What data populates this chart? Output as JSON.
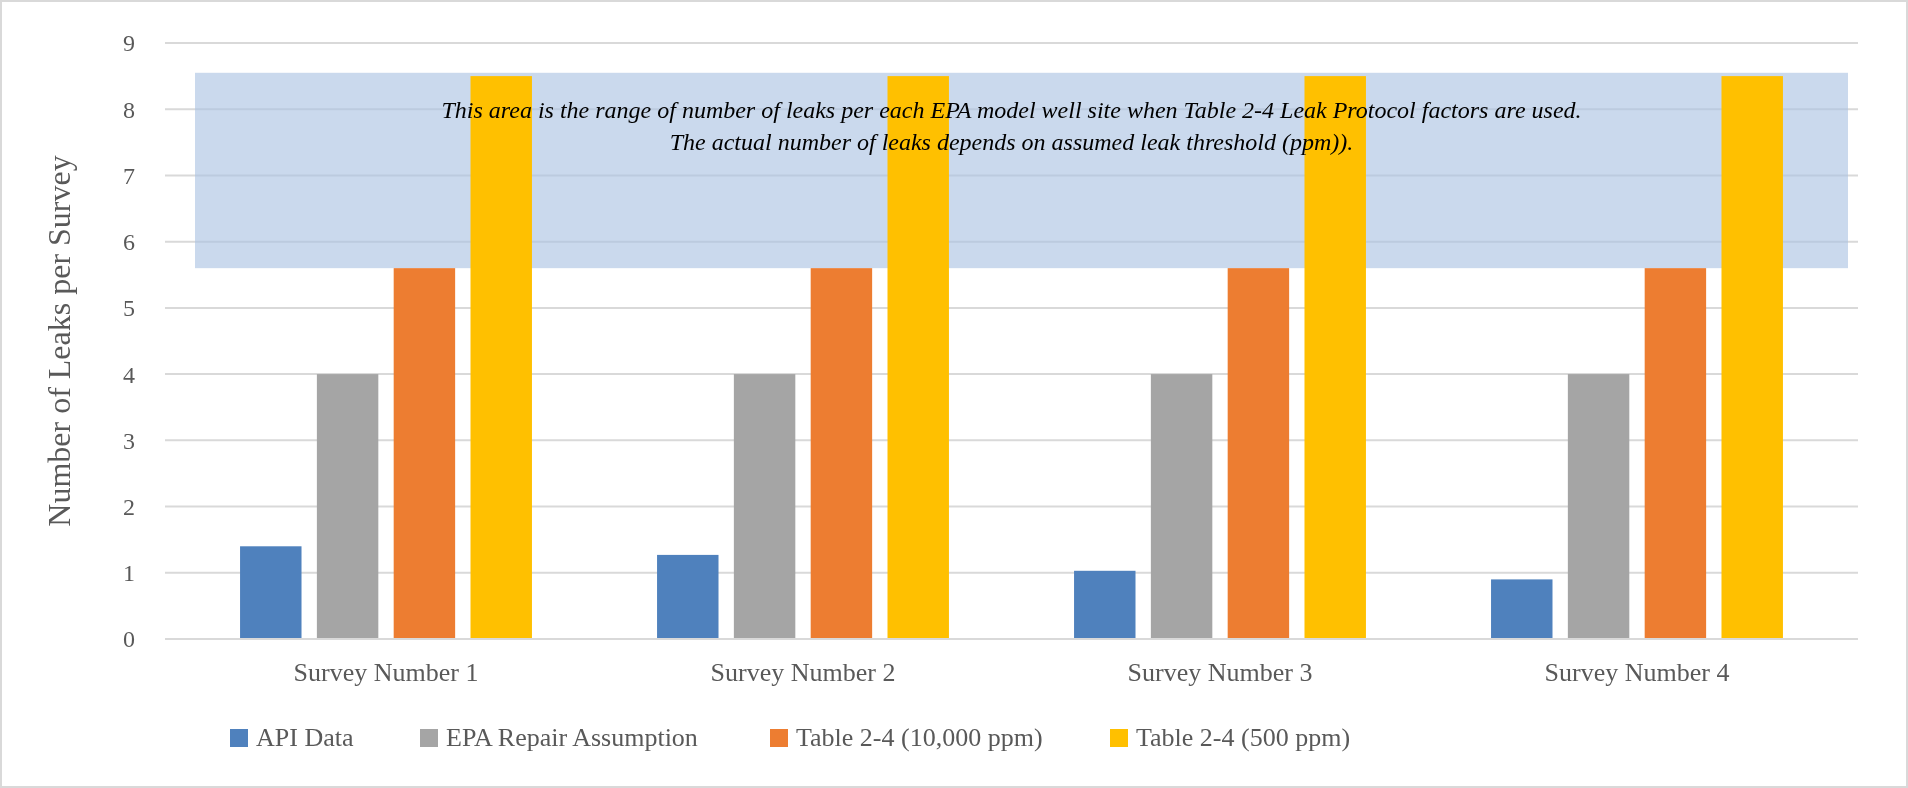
{
  "chart_data": {
    "type": "bar",
    "ylabel": "Number of Leaks per Survey",
    "categories": [
      "Survey Number 1",
      "Survey Number 2",
      "Survey Number 3",
      "Survey Number 4"
    ],
    "series": [
      {
        "name": "API Data",
        "color": "#4f81bd",
        "values": [
          1.4,
          1.27,
          1.03,
          0.9
        ]
      },
      {
        "name": "EPA Repair Assumption",
        "color": "#a5a5a5",
        "values": [
          4,
          4,
          4,
          4
        ]
      },
      {
        "name": "Table 2-4 (10,000 ppm)",
        "color": "#ed7d31",
        "values": [
          5.6,
          5.6,
          5.6,
          5.6
        ]
      },
      {
        "name": "Table 2-4 (500 ppm)",
        "color": "#ffc000",
        "values": [
          8.5,
          8.5,
          8.5,
          8.5
        ]
      }
    ],
    "bands": [
      {
        "axis": "y",
        "from": 5.6,
        "to": 8.55,
        "color": "#a9c2e2",
        "label": "This area is the range of number of leaks per each EPA model well site when Table 2-4 Leak Protocol factors are used.\nThe actual number of leaks depends on assumed leak threshold (ppm))."
      }
    ],
    "ylim": [
      0,
      9
    ],
    "yticks": [
      0,
      1,
      2,
      3,
      4,
      5,
      6,
      7,
      8,
      9
    ],
    "grid": "y",
    "legend": "bottom"
  }
}
